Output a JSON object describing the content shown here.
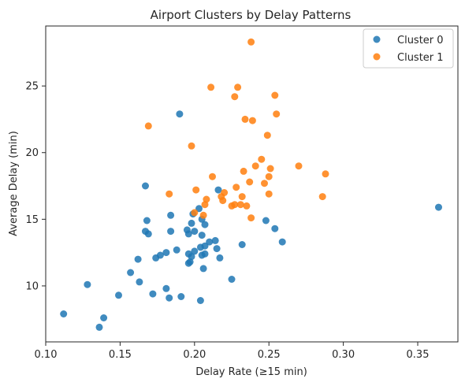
{
  "chart_data": {
    "type": "scatter",
    "title": "Airport Clusters by Delay Patterns",
    "xlabel": "Delay Rate (≥15 min)",
    "ylabel": "Average Delay (min)",
    "xlim": [
      0.1,
      0.377
    ],
    "ylim": [
      5.8,
      29.5
    ],
    "xticks": [
      "0.10",
      "0.15",
      "0.20",
      "0.25",
      "0.30",
      "0.35"
    ],
    "xtick_values": [
      0.1,
      0.15,
      0.2,
      0.25,
      0.3,
      0.35
    ],
    "yticks": [
      "10",
      "15",
      "20",
      "25"
    ],
    "ytick_values": [
      10,
      15,
      20,
      25
    ],
    "grid": false,
    "legend_position": "top-right",
    "series": [
      {
        "name": "Cluster 0",
        "color": "#1f77b4",
        "points": [
          [
            0.112,
            7.9
          ],
          [
            0.136,
            6.9
          ],
          [
            0.139,
            7.6
          ],
          [
            0.128,
            10.1
          ],
          [
            0.149,
            9.3
          ],
          [
            0.157,
            11.0
          ],
          [
            0.163,
            10.3
          ],
          [
            0.162,
            12.0
          ],
          [
            0.172,
            9.4
          ],
          [
            0.181,
            9.8
          ],
          [
            0.183,
            9.1
          ],
          [
            0.191,
            9.2
          ],
          [
            0.204,
            8.9
          ],
          [
            0.167,
            17.5
          ],
          [
            0.168,
            14.9
          ],
          [
            0.167,
            14.1
          ],
          [
            0.169,
            13.9
          ],
          [
            0.184,
            15.3
          ],
          [
            0.184,
            14.1
          ],
          [
            0.174,
            12.1
          ],
          [
            0.177,
            12.3
          ],
          [
            0.181,
            12.5
          ],
          [
            0.188,
            12.7
          ],
          [
            0.19,
            22.9
          ],
          [
            0.195,
            14.2
          ],
          [
            0.196,
            13.9
          ],
          [
            0.198,
            14.7
          ],
          [
            0.199,
            15.4
          ],
          [
            0.2,
            14.1
          ],
          [
            0.203,
            15.8
          ],
          [
            0.205,
            15.0
          ],
          [
            0.207,
            14.6
          ],
          [
            0.196,
            12.4
          ],
          [
            0.198,
            12.2
          ],
          [
            0.197,
            11.8
          ],
          [
            0.196,
            11.7
          ],
          [
            0.2,
            12.6
          ],
          [
            0.204,
            12.9
          ],
          [
            0.205,
            13.8
          ],
          [
            0.205,
            12.3
          ],
          [
            0.207,
            12.4
          ],
          [
            0.206,
            11.3
          ],
          [
            0.207,
            13.0
          ],
          [
            0.21,
            13.3
          ],
          [
            0.214,
            13.4
          ],
          [
            0.215,
            12.8
          ],
          [
            0.217,
            12.1
          ],
          [
            0.216,
            17.2
          ],
          [
            0.225,
            10.5
          ],
          [
            0.232,
            13.1
          ],
          [
            0.248,
            14.9
          ],
          [
            0.254,
            14.3
          ],
          [
            0.259,
            13.3
          ],
          [
            0.364,
            15.9
          ]
        ]
      },
      {
        "name": "Cluster 1",
        "color": "#ff7f0e",
        "points": [
          [
            0.169,
            22.0
          ],
          [
            0.183,
            16.9
          ],
          [
            0.198,
            20.5
          ],
          [
            0.2,
            15.5
          ],
          [
            0.201,
            17.2
          ],
          [
            0.206,
            15.3
          ],
          [
            0.207,
            16.1
          ],
          [
            0.208,
            16.5
          ],
          [
            0.211,
            24.9
          ],
          [
            0.212,
            18.2
          ],
          [
            0.218,
            16.7
          ],
          [
            0.219,
            16.4
          ],
          [
            0.22,
            17.0
          ],
          [
            0.225,
            16.0
          ],
          [
            0.227,
            16.1
          ],
          [
            0.227,
            24.2
          ],
          [
            0.229,
            24.9
          ],
          [
            0.228,
            17.4
          ],
          [
            0.231,
            16.1
          ],
          [
            0.232,
            16.7
          ],
          [
            0.233,
            18.6
          ],
          [
            0.234,
            22.5
          ],
          [
            0.235,
            16.0
          ],
          [
            0.237,
            17.8
          ],
          [
            0.238,
            28.3
          ],
          [
            0.238,
            15.1
          ],
          [
            0.239,
            22.4
          ],
          [
            0.241,
            19.0
          ],
          [
            0.245,
            19.5
          ],
          [
            0.247,
            17.7
          ],
          [
            0.249,
            21.3
          ],
          [
            0.25,
            18.2
          ],
          [
            0.25,
            16.9
          ],
          [
            0.251,
            18.8
          ],
          [
            0.254,
            24.3
          ],
          [
            0.255,
            22.9
          ],
          [
            0.27,
            19.0
          ],
          [
            0.286,
            16.7
          ],
          [
            0.288,
            18.4
          ]
        ]
      }
    ]
  }
}
